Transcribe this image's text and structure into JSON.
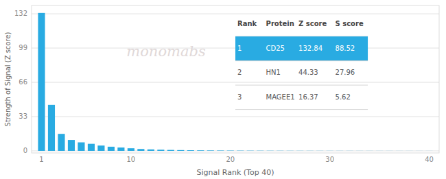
{
  "chart_data": {
    "type": "bar",
    "x": [
      1,
      2,
      3,
      4,
      5,
      6,
      7,
      8,
      9,
      10,
      11,
      12,
      13,
      14,
      15,
      16,
      17,
      18,
      19,
      20,
      21,
      22,
      23,
      24,
      25,
      26,
      27,
      28,
      29,
      30,
      31,
      32,
      33,
      34,
      35,
      36,
      37,
      38,
      39,
      40
    ],
    "values": [
      132.84,
      44.33,
      16.37,
      10.5,
      8.2,
      6.8,
      5.1,
      4.0,
      3.2,
      2.5,
      1.8,
      1.4,
      1.1,
      0.9,
      0.75,
      0.6,
      0.5,
      0.42,
      0.35,
      0.3,
      0.25,
      0.22,
      0.19,
      0.17,
      0.15,
      0.13,
      0.12,
      0.11,
      0.1,
      0.09,
      0.08,
      0.08,
      0.07,
      0.07,
      0.06,
      0.06,
      0.05,
      0.05,
      0.04,
      0.04
    ],
    "color": "#29abe2",
    "xlabel": "Signal Rank (Top 40)",
    "ylabel": "Strength of Signal (Z score)",
    "xlim": [
      0,
      41
    ],
    "xticks": [
      1,
      10,
      20,
      30,
      40
    ],
    "ylim": [
      -2,
      140
    ],
    "yticks": [
      0,
      33,
      66,
      99,
      132
    ],
    "grid": true,
    "annotations": [
      "monomabs"
    ],
    "table": {
      "columns": [
        "Rank",
        "Protein",
        "Z score",
        "S score"
      ],
      "rows": [
        [
          "1",
          "CD25",
          "132.84",
          "88.52"
        ],
        [
          "2",
          "HN1",
          "44.33",
          "27.96"
        ],
        [
          "3",
          "MAGEE1",
          "16.37",
          "5.62"
        ]
      ]
    }
  }
}
